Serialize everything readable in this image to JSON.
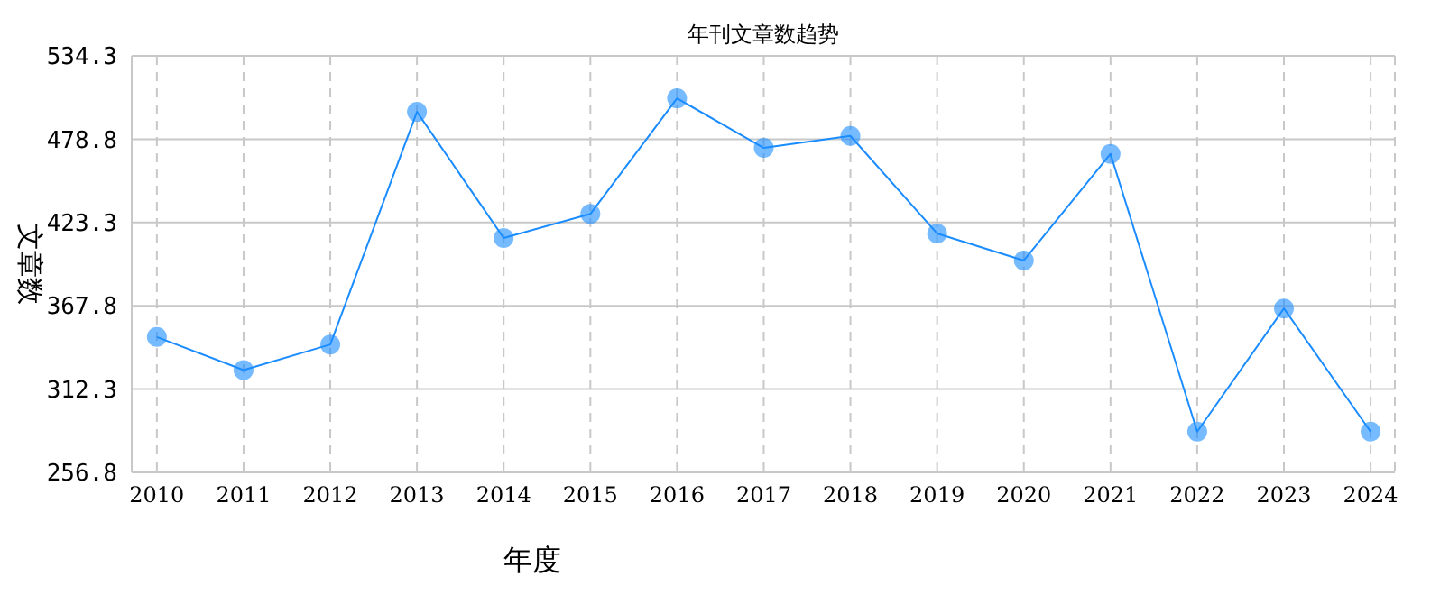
{
  "chart_data": {
    "type": "line",
    "title": "年刊文章数趋势",
    "xlabel": "年度",
    "ylabel": "文章数",
    "categories": [
      "2010",
      "2011",
      "2012",
      "2013",
      "2014",
      "2015",
      "2016",
      "2017",
      "2018",
      "2019",
      "2020",
      "2021",
      "2022",
      "2023",
      "2024"
    ],
    "series": [
      {
        "color": "#1a8cff",
        "values": [
          347,
          325,
          342,
          497,
          413,
          429,
          506,
          473,
          481,
          416,
          398,
          469,
          284,
          366,
          284
        ]
      }
    ],
    "ylim": [
      256.8,
      534.3
    ],
    "yticks": [
      256.8,
      312.3,
      367.8,
      423.3,
      478.8,
      534.3
    ],
    "grid": true,
    "marker": "circle",
    "line_style": "solid"
  }
}
